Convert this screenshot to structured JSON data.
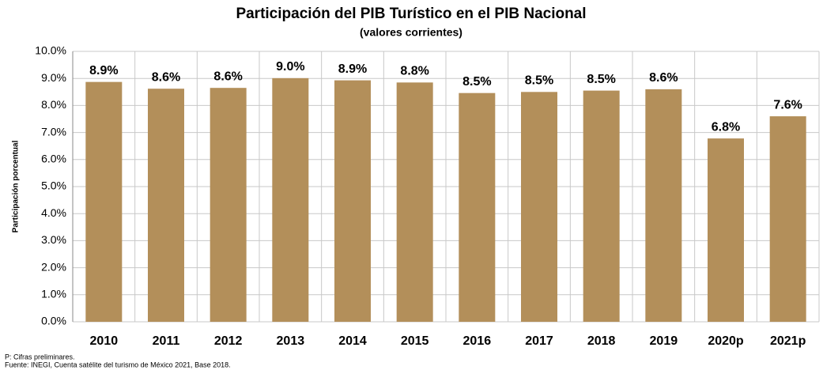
{
  "chart_data": {
    "type": "bar",
    "title": "Participación del PIB Turístico en el PIB Nacional",
    "subtitle": "(valores corrientes)",
    "y_label": "Participación porcentual",
    "categories": [
      "2010",
      "2011",
      "2012",
      "2013",
      "2014",
      "2015",
      "2016",
      "2017",
      "2018",
      "2019",
      "2020p",
      "2021p"
    ],
    "values": [
      8.87,
      8.62,
      8.65,
      9.01,
      8.93,
      8.85,
      8.46,
      8.5,
      8.55,
      8.6,
      6.78,
      7.6
    ],
    "value_labels": [
      "8.9%",
      "8.6%",
      "8.6%",
      "9.0%",
      "8.9%",
      "8.8%",
      "8.5%",
      "8.5%",
      "8.5%",
      "8.6%",
      "6.8%",
      "7.6%"
    ],
    "color": "#b38f5a",
    "ylim": [
      0,
      10
    ],
    "yticks": [
      {
        "value": 0,
        "label": "0.0%"
      },
      {
        "value": 1,
        "label": "1.0%"
      },
      {
        "value": 2,
        "label": "2.0%"
      },
      {
        "value": 3,
        "label": "3.0%"
      },
      {
        "value": 4,
        "label": "4.0%"
      },
      {
        "value": 5,
        "label": "5.0%"
      },
      {
        "value": 6,
        "label": "6.0%"
      },
      {
        "value": 7,
        "label": "7.0%"
      },
      {
        "value": 8,
        "label": "8.0%"
      },
      {
        "value": 9,
        "label": "9.0%"
      },
      {
        "value": 10,
        "label": "10.0%"
      }
    ],
    "grid": true,
    "notes": [
      "P: Cifras preliminares.",
      "Fuente: INEGI, Cuenta satélite del turismo de México 2021, Base 2018."
    ]
  }
}
